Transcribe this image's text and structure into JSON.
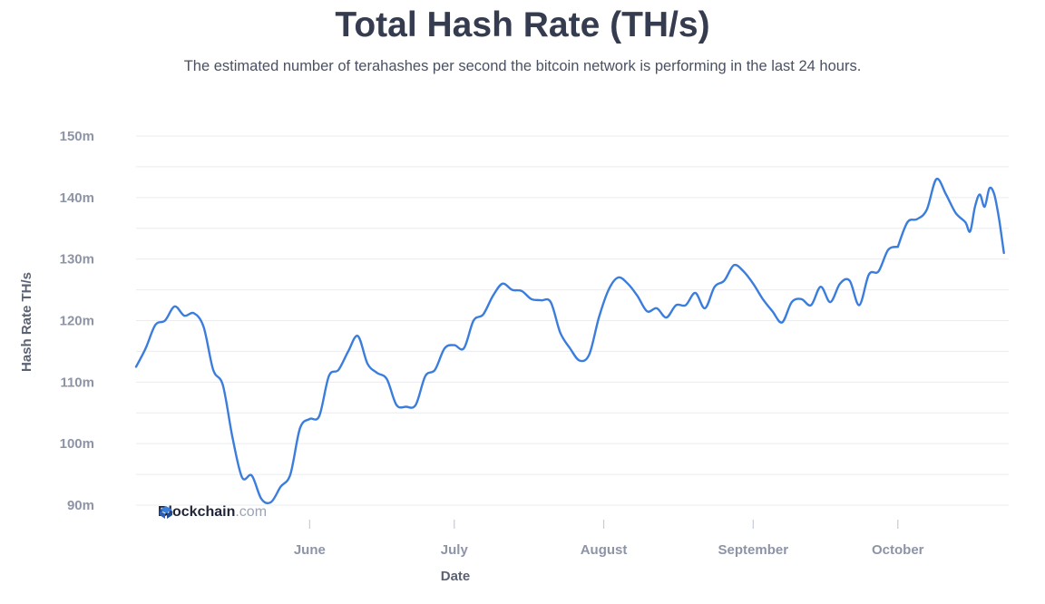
{
  "header": {
    "title": "Total Hash Rate (TH/s)",
    "subtitle": "The estimated number of terahashes per second the bitcoin network is performing in the last 24 hours."
  },
  "logo": {
    "brand": "Blockchain",
    "suffix": ".com"
  },
  "colors": {
    "line": "#3b7ddd",
    "grid": "#e9ecf1",
    "tick": "#8d94a6",
    "title": "#353c4f"
  },
  "chart_data": {
    "type": "line",
    "title": "Total Hash Rate (TH/s)",
    "xlabel": "Date",
    "ylabel": "Hash Rate TH/s",
    "ylim": [
      90,
      150
    ],
    "y_ticks": [
      90,
      100,
      110,
      120,
      130,
      140,
      150
    ],
    "y_tick_labels": [
      "90m",
      "100m",
      "110m",
      "120m",
      "130m",
      "140m",
      "150m"
    ],
    "x_ticks": [
      "2020-06-01",
      "2020-07-01",
      "2020-08-01",
      "2020-09-01",
      "2020-10-01"
    ],
    "x_tick_labels": [
      "June",
      "July",
      "August",
      "September",
      "October"
    ],
    "xlim": [
      "2020-04-26",
      "2020-10-24"
    ],
    "grid": true,
    "series": [
      {
        "values": [
          [
            "2020-04-26",
            112.5
          ],
          [
            "2020-04-28",
            115.5
          ],
          [
            "2020-04-30",
            119.3
          ],
          [
            "2020-05-02",
            120.0
          ],
          [
            "2020-05-04",
            122.3
          ],
          [
            "2020-05-06",
            120.8
          ],
          [
            "2020-05-08",
            121.2
          ],
          [
            "2020-05-10",
            119.0
          ],
          [
            "2020-05-12",
            112.0
          ],
          [
            "2020-05-14",
            109.5
          ],
          [
            "2020-05-16",
            101.0
          ],
          [
            "2020-05-18",
            94.5
          ],
          [
            "2020-05-20",
            94.8
          ],
          [
            "2020-05-22",
            91.0
          ],
          [
            "2020-05-24",
            90.5
          ],
          [
            "2020-05-26",
            93.0
          ],
          [
            "2020-05-28",
            95.0
          ],
          [
            "2020-05-30",
            102.5
          ],
          [
            "2020-06-01",
            104.0
          ],
          [
            "2020-06-03",
            104.5
          ],
          [
            "2020-06-05",
            111.0
          ],
          [
            "2020-06-07",
            112.0
          ],
          [
            "2020-06-09",
            115.0
          ],
          [
            "2020-06-11",
            117.5
          ],
          [
            "2020-06-13",
            113.0
          ],
          [
            "2020-06-15",
            111.5
          ],
          [
            "2020-06-17",
            110.5
          ],
          [
            "2020-06-19",
            106.3
          ],
          [
            "2020-06-21",
            106.0
          ],
          [
            "2020-06-23",
            106.3
          ],
          [
            "2020-06-25",
            111.0
          ],
          [
            "2020-06-27",
            112.0
          ],
          [
            "2020-06-29",
            115.5
          ],
          [
            "2020-07-01",
            116.0
          ],
          [
            "2020-07-03",
            115.5
          ],
          [
            "2020-07-05",
            120.0
          ],
          [
            "2020-07-07",
            121.0
          ],
          [
            "2020-07-09",
            124.0
          ],
          [
            "2020-07-11",
            126.0
          ],
          [
            "2020-07-13",
            125.0
          ],
          [
            "2020-07-15",
            124.8
          ],
          [
            "2020-07-17",
            123.5
          ],
          [
            "2020-07-19",
            123.3
          ],
          [
            "2020-07-21",
            123.0
          ],
          [
            "2020-07-23",
            118.0
          ],
          [
            "2020-07-25",
            115.5
          ],
          [
            "2020-07-27",
            113.5
          ],
          [
            "2020-07-29",
            114.5
          ],
          [
            "2020-07-31",
            120.5
          ],
          [
            "2020-08-02",
            125.0
          ],
          [
            "2020-08-04",
            127.0
          ],
          [
            "2020-08-06",
            126.0
          ],
          [
            "2020-08-08",
            124.0
          ],
          [
            "2020-08-10",
            121.5
          ],
          [
            "2020-08-12",
            122.0
          ],
          [
            "2020-08-14",
            120.5
          ],
          [
            "2020-08-16",
            122.5
          ],
          [
            "2020-08-18",
            122.5
          ],
          [
            "2020-08-20",
            124.5
          ],
          [
            "2020-08-22",
            122.0
          ],
          [
            "2020-08-24",
            125.5
          ],
          [
            "2020-08-26",
            126.5
          ],
          [
            "2020-08-28",
            129.0
          ],
          [
            "2020-08-30",
            128.0
          ],
          [
            "2020-09-01",
            126.0
          ],
          [
            "2020-09-03",
            123.5
          ],
          [
            "2020-09-05",
            121.5
          ],
          [
            "2020-09-07",
            119.7
          ],
          [
            "2020-09-09",
            123.0
          ],
          [
            "2020-09-11",
            123.5
          ],
          [
            "2020-09-13",
            122.5
          ],
          [
            "2020-09-15",
            125.5
          ],
          [
            "2020-09-17",
            123.0
          ],
          [
            "2020-09-19",
            126.0
          ],
          [
            "2020-09-21",
            126.5
          ],
          [
            "2020-09-23",
            122.5
          ],
          [
            "2020-09-25",
            127.5
          ],
          [
            "2020-09-27",
            128.0
          ],
          [
            "2020-09-29",
            131.5
          ],
          [
            "2020-10-01",
            132.0
          ]
        ]
      },
      {
        "values": [
          [
            "2020-10-01",
            132.0
          ],
          [
            "2020-10-03",
            136.0
          ],
          [
            "2020-10-05",
            136.5
          ],
          [
            "2020-10-07",
            138.0
          ],
          [
            "2020-10-09",
            143.0
          ],
          [
            "2020-10-11",
            140.5
          ],
          [
            "2020-10-13",
            137.5
          ],
          [
            "2020-10-15",
            136.0
          ],
          [
            "2020-10-16",
            134.5
          ],
          [
            "2020-10-17",
            138.5
          ],
          [
            "2020-10-18",
            140.5
          ],
          [
            "2020-10-19",
            138.5
          ],
          [
            "2020-10-20",
            141.5
          ],
          [
            "2020-10-21",
            140.5
          ],
          [
            "2020-10-22",
            136.5
          ],
          [
            "2020-10-23",
            131.0
          ]
        ]
      }
    ]
  }
}
